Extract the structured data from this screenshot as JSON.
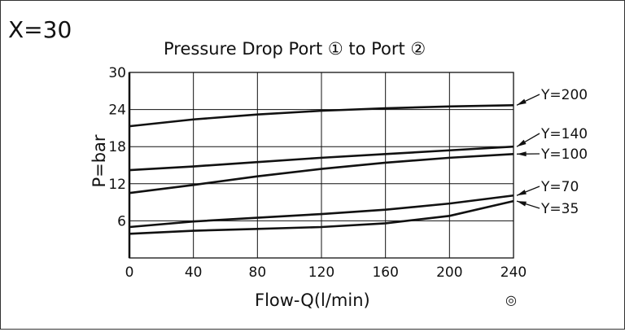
{
  "panel_label": "X=30",
  "symbol": "◎",
  "chart_data": {
    "type": "line",
    "title": "Pressure Drop  Port ① to Port ②",
    "xlabel": "Flow-Q(l/min)",
    "ylabel": "P=bar",
    "xlim": [
      0,
      240
    ],
    "ylim": [
      0,
      30
    ],
    "x_ticks": [
      0,
      40,
      80,
      120,
      160,
      200,
      240
    ],
    "y_ticks": [
      6,
      12,
      18,
      24,
      30
    ],
    "grid": true,
    "series": [
      {
        "name": "Y=200",
        "x": [
          0,
          40,
          80,
          120,
          160,
          200,
          240
        ],
        "y": [
          21.3,
          22.4,
          23.2,
          23.8,
          24.2,
          24.5,
          24.7
        ]
      },
      {
        "name": "Y=140",
        "x": [
          0,
          40,
          80,
          120,
          160,
          200,
          240
        ],
        "y": [
          14.2,
          14.8,
          15.5,
          16.2,
          16.8,
          17.4,
          18.0
        ]
      },
      {
        "name": "Y=100",
        "x": [
          0,
          40,
          80,
          120,
          160,
          200,
          240
        ],
        "y": [
          10.5,
          11.8,
          13.2,
          14.4,
          15.4,
          16.2,
          16.8
        ]
      },
      {
        "name": "Y=70",
        "x": [
          0,
          40,
          80,
          120,
          160,
          200,
          240
        ],
        "y": [
          5.0,
          5.9,
          6.5,
          7.1,
          7.8,
          8.8,
          10.1
        ]
      },
      {
        "name": "Y=35",
        "x": [
          0,
          40,
          80,
          120,
          160,
          200,
          240
        ],
        "y": [
          3.9,
          4.4,
          4.7,
          5.0,
          5.6,
          6.8,
          9.2
        ]
      }
    ]
  }
}
